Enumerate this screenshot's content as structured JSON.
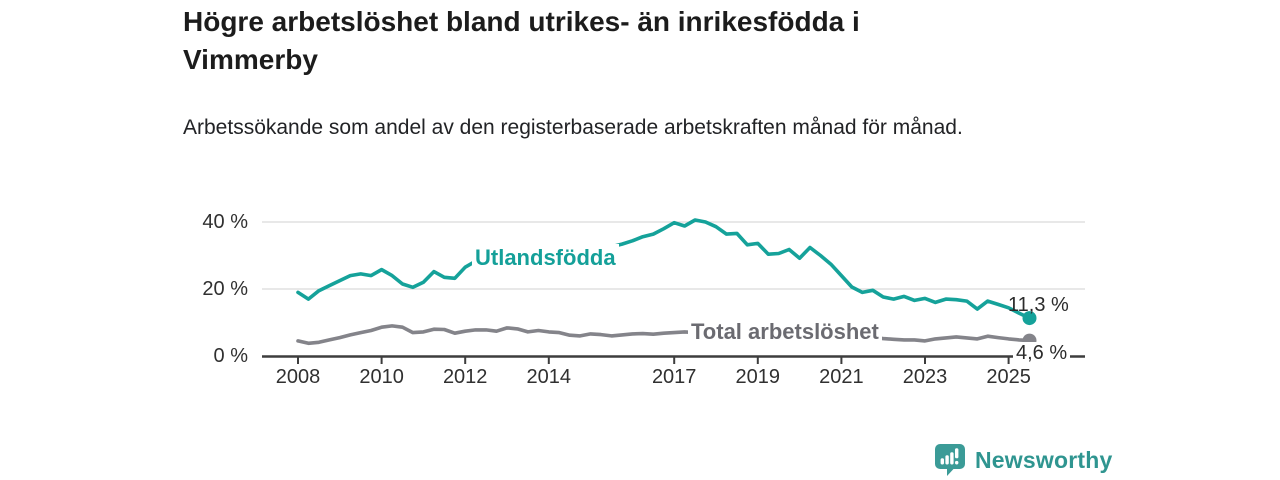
{
  "header": {
    "title": "Högre arbetslöshet bland utrikes- än inrikesfödda i Vimmerby",
    "subtitle": "Arbetssökande som andel av den registerbaserade arbetskraften månad för månad."
  },
  "footer": {
    "brand": "Newsworthy"
  },
  "colors": {
    "foreign_line": "#15a29a",
    "total_line": "#84848a",
    "foreign_label": "#14a099",
    "total_label": "#6b6b71",
    "grid": "#dadada",
    "axis": "#3d3d3d",
    "tick_text": "#303030",
    "value_text": "#2b2b2b",
    "brand": "#3b9b97"
  },
  "chart_data": {
    "type": "line",
    "title": "Högre arbetslöshet bland utrikes- än inrikesfödda i Vimmerby",
    "subtitle": "Arbetssökande som andel av den registerbaserade arbetskraften månad för månad.",
    "xlabel": "",
    "ylabel": "",
    "x_unit": "year",
    "x_start": 2008.0,
    "x_step": 0.25,
    "x_end": 2025.5,
    "xlim": [
      2007.1,
      2026.9
    ],
    "ylim": [
      0,
      42
    ],
    "grid": "horizontal",
    "legend_position": "inline-labels",
    "y_ticks": [
      {
        "value": 0,
        "label": "0 %"
      },
      {
        "value": 20,
        "label": "20 %"
      },
      {
        "value": 40,
        "label": "40 %"
      }
    ],
    "x_ticks": [
      {
        "value": 2008,
        "label": "2008"
      },
      {
        "value": 2010,
        "label": "2010"
      },
      {
        "value": 2012,
        "label": "2012"
      },
      {
        "value": 2014,
        "label": "2014"
      },
      {
        "value": 2017,
        "label": "2017"
      },
      {
        "value": 2019,
        "label": "2019"
      },
      {
        "value": 2021,
        "label": "2021"
      },
      {
        "value": 2023,
        "label": "2023"
      },
      {
        "value": 2025,
        "label": "2025"
      }
    ],
    "series": [
      {
        "name": "Utlandsfödda",
        "color": "#15a29a",
        "end_label": "11,3 %",
        "last_value": 11.3,
        "values": [
          19.0,
          17.0,
          19.5,
          21.0,
          22.5,
          24.0,
          24.5,
          24.0,
          25.8,
          24.0,
          21.5,
          20.5,
          22.0,
          25.2,
          23.5,
          23.2,
          26.5,
          28.3,
          25.8,
          26.5,
          27.8,
          28.2,
          28.6,
          28.0,
          29.0,
          29.5,
          30.0,
          30.4,
          31.0,
          32.0,
          32.6,
          33.4,
          34.4,
          35.6,
          36.4,
          38.0,
          39.8,
          38.8,
          40.6,
          40.0,
          38.6,
          36.4,
          36.6,
          33.2,
          33.6,
          30.4,
          30.6,
          31.8,
          29.2,
          32.4,
          30.0,
          27.4,
          24.0,
          20.6,
          19.0,
          19.6,
          17.6,
          17.0,
          17.8,
          16.6,
          17.2,
          16.0,
          17.0,
          16.8,
          16.4,
          14.0,
          16.4,
          15.4,
          14.4,
          12.8,
          11.3
        ]
      },
      {
        "name": "Total arbetslöshet",
        "color": "#84848a",
        "end_label": "4,6 %",
        "last_value": 4.6,
        "values": [
          4.5,
          3.8,
          4.1,
          4.8,
          5.5,
          6.3,
          7.0,
          7.6,
          8.6,
          9.0,
          8.6,
          7.0,
          7.2,
          8.0,
          7.9,
          6.8,
          7.4,
          7.8,
          7.8,
          7.4,
          8.4,
          8.1,
          7.2,
          7.6,
          7.2,
          7.0,
          6.2,
          6.0,
          6.6,
          6.4,
          6.0,
          6.3,
          6.6,
          6.7,
          6.5,
          6.8,
          7.0,
          7.2,
          7.0,
          6.8,
          6.5,
          6.3,
          6.2,
          6.0,
          6.0,
          6.2,
          6.3,
          6.5,
          6.8,
          7.8,
          7.5,
          7.0,
          6.8,
          6.3,
          5.8,
          5.5,
          5.2,
          5.0,
          4.8,
          4.8,
          4.5,
          5.1,
          5.4,
          5.7,
          5.4,
          5.1,
          5.9,
          5.5,
          5.1,
          4.8,
          4.6
        ]
      }
    ]
  }
}
